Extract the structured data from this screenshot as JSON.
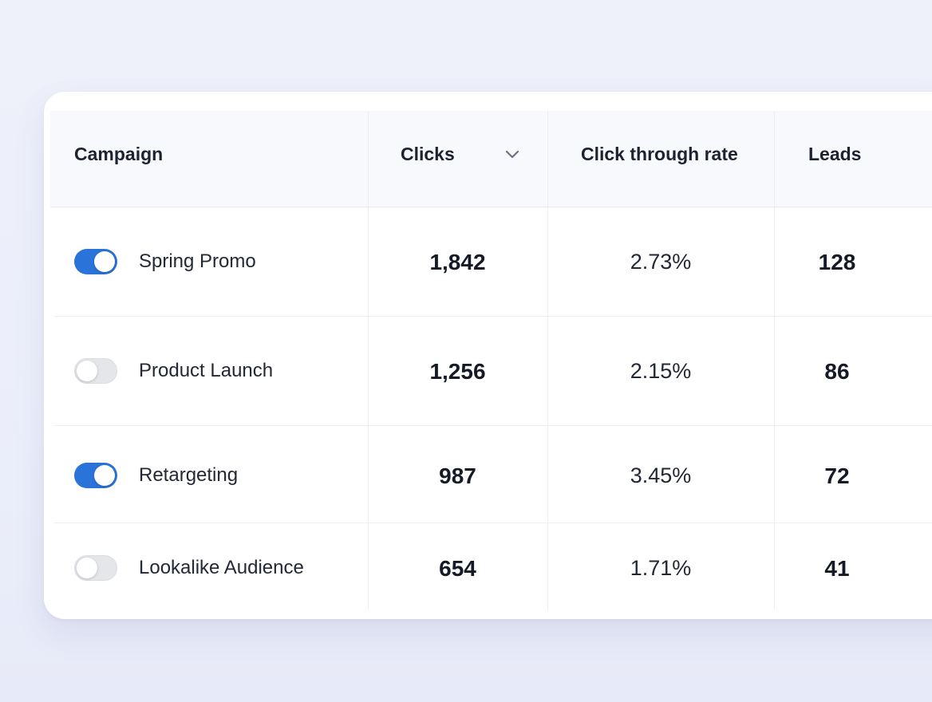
{
  "table": {
    "columns": [
      {
        "label": "Campaign"
      },
      {
        "label": "Clicks",
        "sort_icon": "chevron-down-icon"
      },
      {
        "label": "Click through rate"
      },
      {
        "label": "Leads"
      }
    ],
    "rows": [
      {
        "active": true,
        "campaign": "Spring Promo",
        "clicks": "1,842",
        "ctr": "2.73%",
        "leads": "128"
      },
      {
        "active": false,
        "campaign": "Product Launch",
        "clicks": "1,256",
        "ctr": "2.15%",
        "leads": "86"
      },
      {
        "active": true,
        "campaign": "Retargeting",
        "clicks": "987",
        "ctr": "3.45%",
        "leads": "72"
      },
      {
        "active": false,
        "campaign": "Lookalike Audience",
        "clicks": "654",
        "ctr": "1.71%",
        "leads": "41"
      }
    ]
  },
  "colors": {
    "toggle_on": "#2a73d9",
    "toggle_off": "#e4e6ea"
  }
}
